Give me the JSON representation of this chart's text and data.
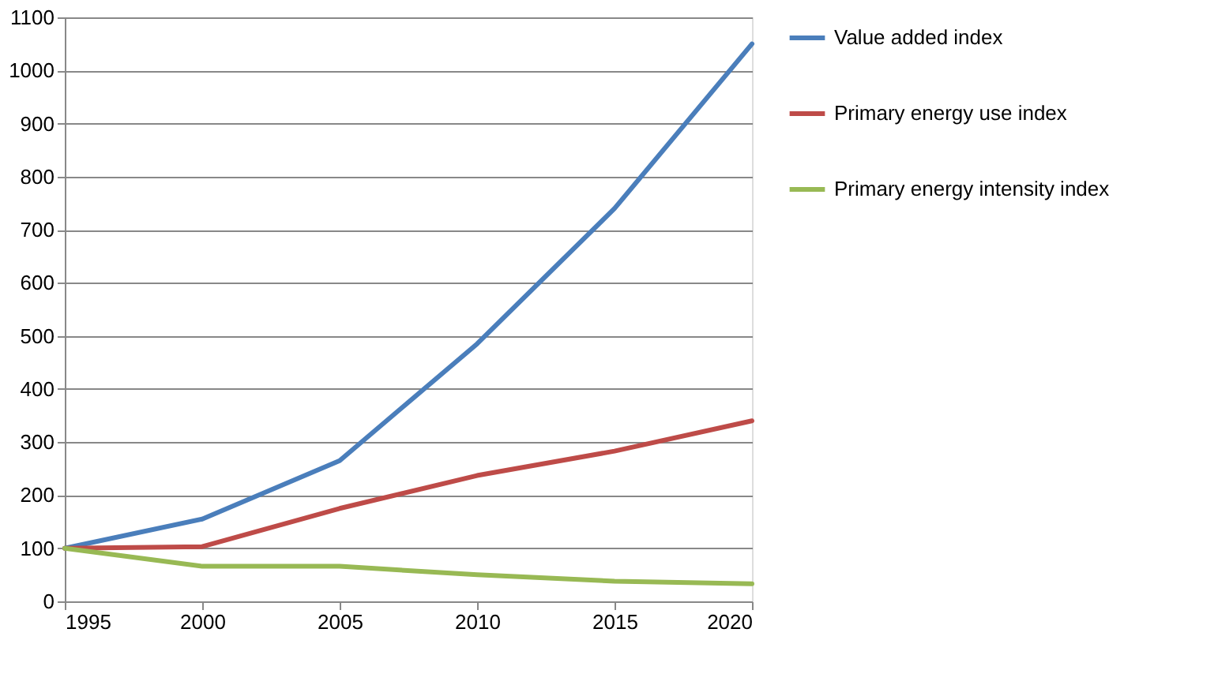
{
  "chart_data": {
    "type": "line",
    "x": [
      1995,
      2000,
      2005,
      2010,
      2015,
      2020
    ],
    "series": [
      {
        "name": "Value added index",
        "color": "#4a7ebb",
        "values": [
          100,
          155,
          265,
          485,
          740,
          1050
        ]
      },
      {
        "name": "Primary energy use index",
        "color": "#be4b48",
        "values": [
          100,
          103,
          175,
          237,
          283,
          340
        ]
      },
      {
        "name": "Primary energy intensity index",
        "color": "#98b954",
        "values": [
          100,
          66,
          66,
          50,
          38,
          33
        ]
      }
    ],
    "xlim": [
      1995,
      2020
    ],
    "xticks": [
      1995,
      2000,
      2005,
      2010,
      2015,
      2020
    ],
    "ylim": [
      0,
      1100
    ],
    "yticks": [
      0,
      100,
      200,
      300,
      400,
      500,
      600,
      700,
      800,
      900,
      1000,
      1100
    ],
    "grid": "y",
    "legend": "right",
    "marker": "none",
    "line_style": "solid"
  }
}
